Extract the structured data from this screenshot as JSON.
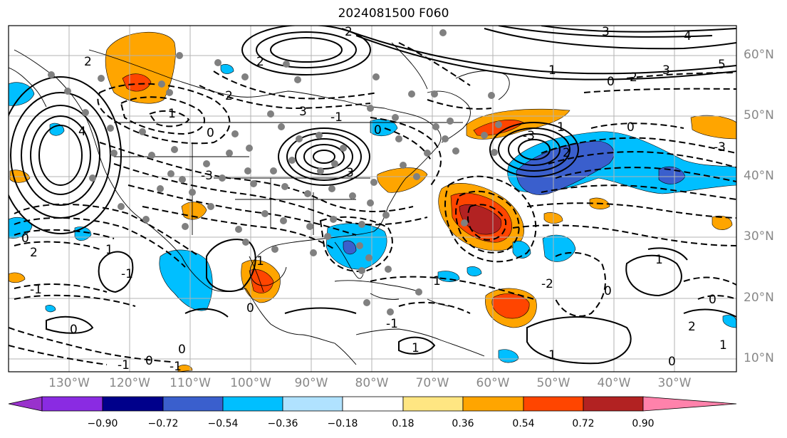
{
  "title": "2024081500 F060",
  "lat_labels": [
    "60°N",
    "50°N",
    "40°N",
    "30°N",
    "20°N",
    "10°N"
  ],
  "lon_labels": [
    "130°W",
    "120°W",
    "110°W",
    "100°W",
    "90°W",
    "80°W",
    "70°W",
    "60°W",
    "50°W",
    "40°W",
    "30°W"
  ],
  "colorbar": {
    "ticks": [
      "−0.90",
      "−0.72",
      "−0.54",
      "−0.36",
      "−0.18",
      "0.18",
      "0.36",
      "0.54",
      "0.72",
      "0.90"
    ],
    "colors": {
      "under": "#9932cc",
      "bins": [
        "#8a2be2",
        "#00008b",
        "#3a5fcd",
        "#00bfff",
        "#b0e2ff",
        "#ffffff",
        "#ffe682",
        "#ffa500",
        "#ff4500",
        "#b22222"
      ],
      "over": "#ff82ab"
    }
  },
  "contour_labels": [
    "2",
    "3",
    "4",
    "5",
    "2",
    "3",
    "1",
    "2",
    "0",
    "1",
    "0",
    "3",
    "2",
    "-1",
    "0",
    "-3",
    "3",
    "4",
    "1",
    "1",
    "2",
    "-1",
    "2",
    "0",
    "-1",
    "-3",
    "0",
    "-3",
    "2",
    "1",
    "-2",
    "0",
    "1",
    "0",
    "1",
    "0",
    "2",
    "0",
    "1",
    "1",
    "0",
    "1",
    "0",
    "0",
    "-1",
    "-1",
    "-1"
  ]
}
